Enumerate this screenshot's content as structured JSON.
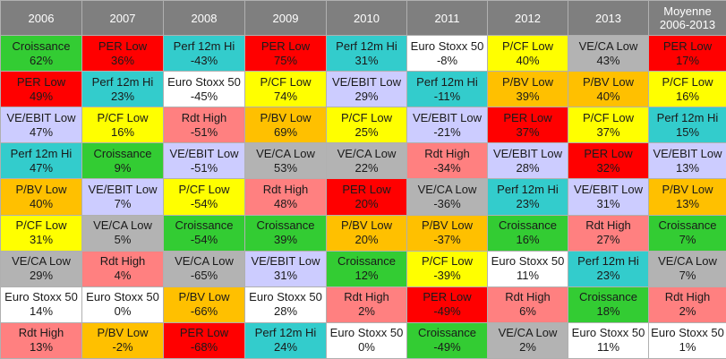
{
  "chart_data": {
    "type": "table",
    "columns": [
      "2006",
      "2007",
      "2008",
      "2009",
      "2010",
      "2011",
      "2012",
      "2013",
      "Moyenne\n2006-2013"
    ],
    "rows": [
      [
        [
          "Croissance",
          "62%"
        ],
        [
          "PER Low",
          "36%"
        ],
        [
          "Perf 12m Hi",
          "-43%"
        ],
        [
          "PER Low",
          "75%"
        ],
        [
          "Perf 12m Hi",
          "31%"
        ],
        [
          "Euro Stoxx 50",
          "-8%"
        ],
        [
          "P/CF Low",
          "40%"
        ],
        [
          "VE/CA Low",
          "43%"
        ],
        [
          "PER Low",
          "17%"
        ]
      ],
      [
        [
          "PER Low",
          "49%"
        ],
        [
          "Perf 12m Hi",
          "23%"
        ],
        [
          "Euro Stoxx 50",
          "-45%"
        ],
        [
          "P/CF Low",
          "74%"
        ],
        [
          "VE/EBIT Low",
          "29%"
        ],
        [
          "Perf 12m Hi",
          "-11%"
        ],
        [
          "P/BV Low",
          "39%"
        ],
        [
          "P/BV Low",
          "40%"
        ],
        [
          "P/CF Low",
          "16%"
        ]
      ],
      [
        [
          "VE/EBIT Low",
          "47%"
        ],
        [
          "P/CF Low",
          "16%"
        ],
        [
          "Rdt High",
          "-51%"
        ],
        [
          "P/BV Low",
          "69%"
        ],
        [
          "P/CF Low",
          "25%"
        ],
        [
          "VE/EBIT Low",
          "-21%"
        ],
        [
          "PER Low",
          "37%"
        ],
        [
          "P/CF Low",
          "37%"
        ],
        [
          "Perf 12m Hi",
          "15%"
        ]
      ],
      [
        [
          "Perf 12m Hi",
          "47%"
        ],
        [
          "Croissance",
          "9%"
        ],
        [
          "VE/EBIT Low",
          "-51%"
        ],
        [
          "VE/CA Low",
          "53%"
        ],
        [
          "VE/CA Low",
          "22%"
        ],
        [
          "Rdt High",
          "-34%"
        ],
        [
          "VE/EBIT Low",
          "28%"
        ],
        [
          "PER Low",
          "32%"
        ],
        [
          "VE/EBIT Low",
          "13%"
        ]
      ],
      [
        [
          "P/BV Low",
          "40%"
        ],
        [
          "VE/EBIT Low",
          "7%"
        ],
        [
          "P/CF Low",
          "-54%"
        ],
        [
          "Rdt High",
          "48%"
        ],
        [
          "PER Low",
          "20%"
        ],
        [
          "VE/CA Low",
          "-36%"
        ],
        [
          "Perf 12m Hi",
          "23%"
        ],
        [
          "VE/EBIT Low",
          "31%"
        ],
        [
          "P/BV Low",
          "13%"
        ]
      ],
      [
        [
          "P/CF Low",
          "31%"
        ],
        [
          "VE/CA Low",
          "5%"
        ],
        [
          "Croissance",
          "-54%"
        ],
        [
          "Croissance",
          "39%"
        ],
        [
          "P/BV Low",
          "20%"
        ],
        [
          "P/BV Low",
          "-37%"
        ],
        [
          "Croissance",
          "16%"
        ],
        [
          "Rdt High",
          "27%"
        ],
        [
          "Croissance",
          "7%"
        ]
      ],
      [
        [
          "VE/CA Low",
          "29%"
        ],
        [
          "Rdt High",
          "4%"
        ],
        [
          "VE/CA Low",
          "-65%"
        ],
        [
          "VE/EBIT Low",
          "31%"
        ],
        [
          "Croissance",
          "12%"
        ],
        [
          "P/CF Low",
          "-39%"
        ],
        [
          "Euro Stoxx 50",
          "11%"
        ],
        [
          "Perf 12m Hi",
          "23%"
        ],
        [
          "VE/CA Low",
          "7%"
        ]
      ],
      [
        [
          "Euro Stoxx 50",
          "14%"
        ],
        [
          "Euro Stoxx 50",
          "0%"
        ],
        [
          "P/BV Low",
          "-66%"
        ],
        [
          "Euro Stoxx 50",
          "28%"
        ],
        [
          "Rdt High",
          "2%"
        ],
        [
          "PER Low",
          "-49%"
        ],
        [
          "Rdt High",
          "6%"
        ],
        [
          "Croissance",
          "18%"
        ],
        [
          "Rdt High",
          "2%"
        ]
      ],
      [
        [
          "Rdt High",
          "13%"
        ],
        [
          "P/BV Low",
          "-2%"
        ],
        [
          "PER Low",
          "-68%"
        ],
        [
          "Perf 12m Hi",
          "24%"
        ],
        [
          "Euro Stoxx 50",
          "0%"
        ],
        [
          "Croissance",
          "-49%"
        ],
        [
          "VE/CA Low",
          "2%"
        ],
        [
          "Euro Stoxx 50",
          "11%"
        ],
        [
          "Euro Stoxx 50",
          "1%"
        ]
      ]
    ],
    "strategy_colors": {
      "Croissance": "#33cc33",
      "PER Low": "#ff0000",
      "Perf 12m Hi": "#33cccc",
      "Euro Stoxx 50": "#ffffff",
      "P/CF Low": "#ffff00",
      "VE/CA Low": "#b3b3b3",
      "VE/EBIT Low": "#ccccff",
      "P/BV Low": "#ffc000",
      "Rdt High": "#ff8080"
    },
    "header_background": "#7f7f7f",
    "header_text_color": "#ffffff"
  }
}
